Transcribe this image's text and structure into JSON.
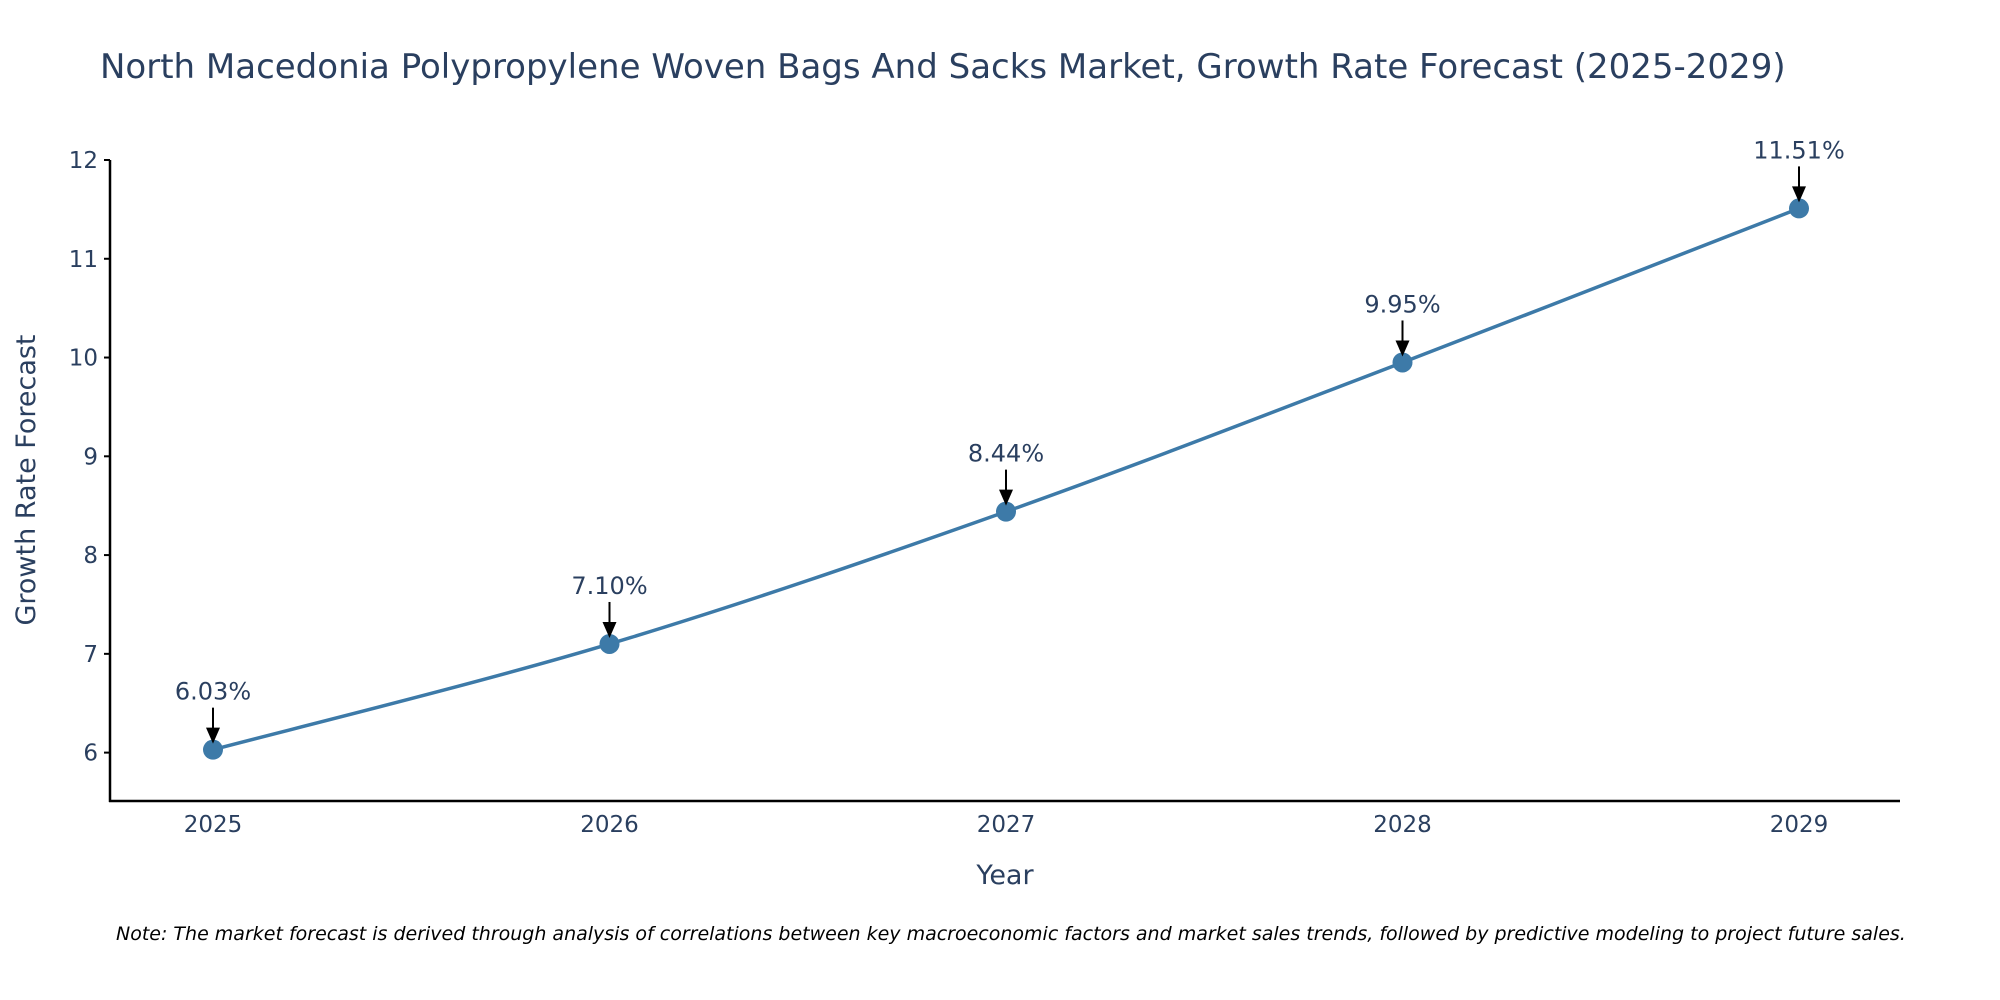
{
  "chart_data": {
    "type": "line",
    "title": "North Macedonia Polypropylene Woven Bags And Sacks Market, Growth Rate Forecast (2025-2029)",
    "xlabel": "Year",
    "ylabel": "Growth Rate Forecast",
    "categories": [
      "2025",
      "2026",
      "2027",
      "2028",
      "2029"
    ],
    "series": [
      {
        "name": "Growth Rate Forecast",
        "values": [
          6.03,
          7.1,
          8.44,
          9.95,
          11.51
        ],
        "color": "#3d7aa8"
      }
    ],
    "data_labels": [
      "6.03%",
      "7.10%",
      "8.44%",
      "9.95%",
      "11.51%"
    ],
    "ylim": [
      5.5,
      12
    ],
    "yticks": [
      6,
      7,
      8,
      9,
      10,
      11,
      12
    ],
    "grid": false,
    "note": "Note: The market forecast is derived through analysis of correlations between key macroeconomic factors and market sales trends, followed by predictive modeling to project future sales."
  }
}
